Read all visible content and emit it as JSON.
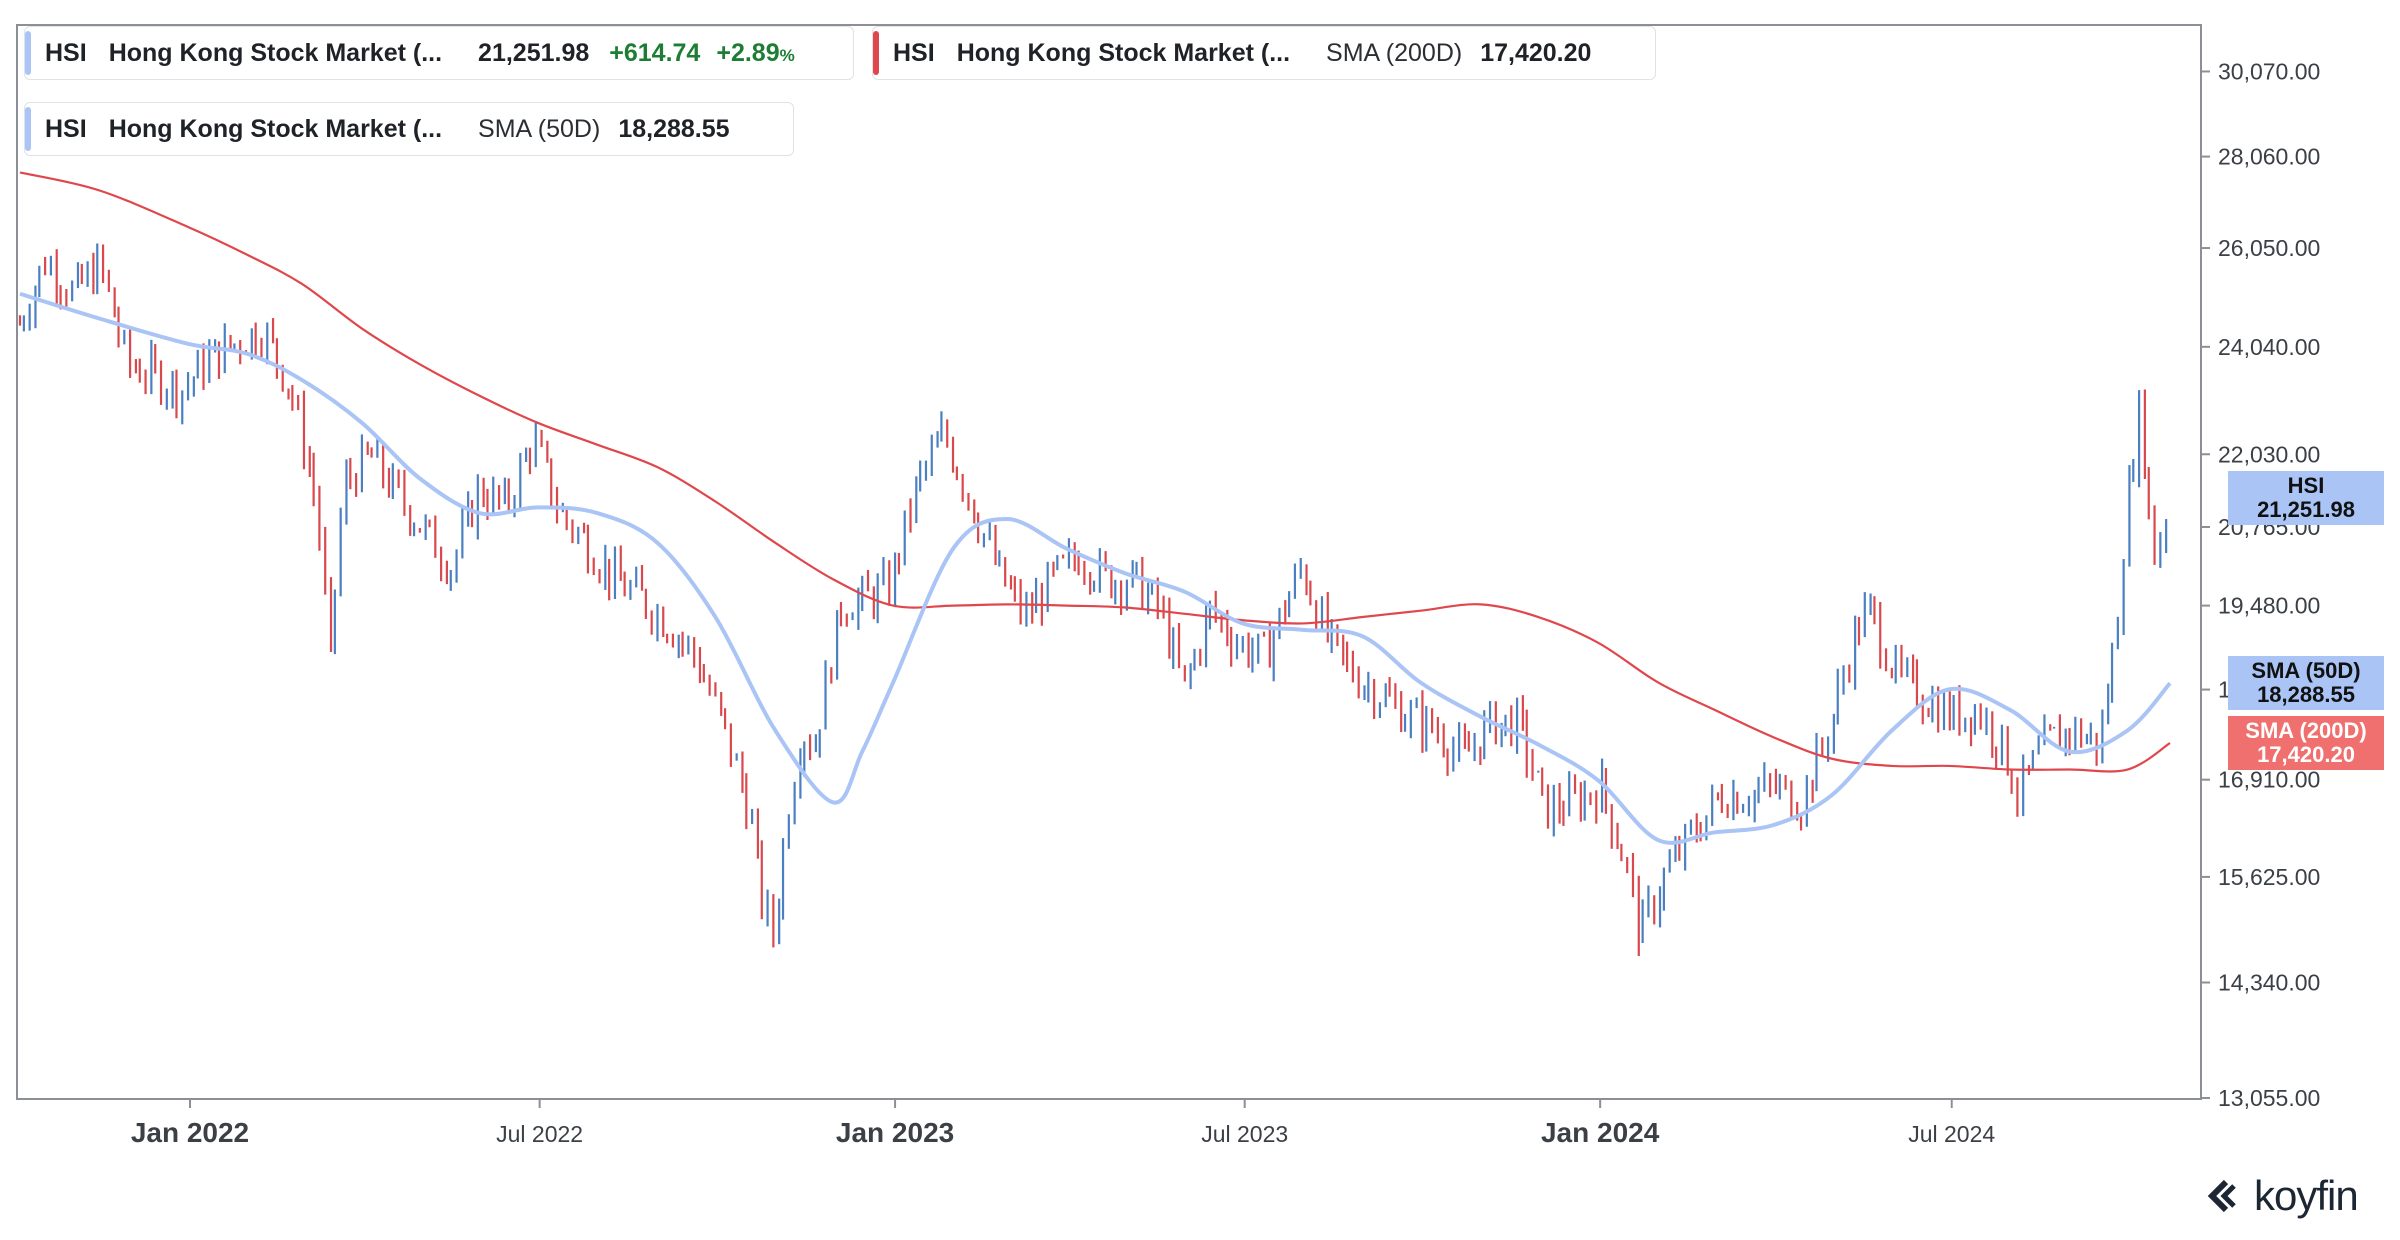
{
  "legend": [
    {
      "ticker": "HSI",
      "name": "Hong Kong Stock Market (...",
      "value": "21,251.98",
      "change": "+614.74",
      "change_pct": "+2.89",
      "pct_unit": "%",
      "color": "#a9c4f5"
    },
    {
      "ticker": "HSI",
      "name": "Hong Kong Stock Market (...",
      "indicator": "SMA (200D)",
      "value": "17,420.20",
      "color": "#e0474c"
    },
    {
      "ticker": "HSI",
      "name": "Hong Kong Stock Market (...",
      "indicator": "SMA (50D)",
      "value": "18,288.55",
      "color": "#a9c4f5"
    }
  ],
  "tags": {
    "price": {
      "line1": "HSI",
      "line2": "21,251.98",
      "color": "#a9c4f5"
    },
    "sma50": {
      "line1": "SMA (50D)",
      "line2": "18,288.55",
      "color": "#a9c4f5"
    },
    "sma200": {
      "line1": "SMA (200D)",
      "line2": "17,420.20",
      "color": "#f07070"
    }
  },
  "logo": {
    "text": "koyfin"
  },
  "chart_data": {
    "type": "candlestick",
    "title": "",
    "y_axis": {
      "ticks": [
        13055,
        14340,
        15625,
        16910,
        18195,
        19480,
        20765,
        22030,
        24040,
        26050,
        28060,
        30070
      ],
      "tick_labels": [
        "13,055.00",
        "14,340.00",
        "15,625.00",
        "16,910.00",
        "18,195.00",
        "19,480.00",
        "20,765.00",
        "22,030.00",
        "24,040.00",
        "26,050.00",
        "28,060.00",
        "30,070.00"
      ],
      "range": [
        13055,
        31000
      ],
      "scale": "log",
      "position": "right"
    },
    "x_axis": {
      "ticks": [
        {
          "date": "2022-01-01",
          "label": "Jan 2022",
          "major": true
        },
        {
          "date": "2022-07-01",
          "label": "Jul 2022",
          "major": false
        },
        {
          "date": "2023-01-01",
          "label": "Jan 2023",
          "major": true
        },
        {
          "date": "2023-07-01",
          "label": "Jul 2023",
          "major": false
        },
        {
          "date": "2024-01-01",
          "label": "Jan 2024",
          "major": true
        },
        {
          "date": "2024-07-01",
          "label": "Jul 2024",
          "major": false
        }
      ],
      "range": [
        "2021-10-05",
        "2024-10-22"
      ]
    },
    "grid": false,
    "series": [
      {
        "name": "HSI",
        "kind": "price",
        "up_color": "#4a7fc1",
        "down_color": "#d9484c",
        "points": [
          [
            "2021-10-05",
            24500
          ],
          [
            "2021-10-19",
            25800
          ],
          [
            "2021-11-02",
            25100
          ],
          [
            "2021-11-16",
            25700
          ],
          [
            "2021-11-30",
            23700
          ],
          [
            "2021-12-14",
            23500
          ],
          [
            "2021-12-28",
            23200
          ],
          [
            "2022-01-11",
            23800
          ],
          [
            "2022-01-25",
            24100
          ],
          [
            "2022-02-08",
            24400
          ],
          [
            "2022-02-22",
            23300
          ],
          [
            "2022-03-01",
            22300
          ],
          [
            "2022-03-08",
            21200
          ],
          [
            "2022-03-15",
            18600
          ],
          [
            "2022-03-22",
            21500
          ],
          [
            "2022-04-05",
            22000
          ],
          [
            "2022-04-19",
            21300
          ],
          [
            "2022-05-03",
            20700
          ],
          [
            "2022-05-17",
            20100
          ],
          [
            "2022-05-31",
            21400
          ],
          [
            "2022-06-14",
            21100
          ],
          [
            "2022-06-28",
            22300
          ],
          [
            "2022-07-12",
            21000
          ],
          [
            "2022-07-26",
            20500
          ],
          [
            "2022-08-09",
            19900
          ],
          [
            "2022-08-23",
            19600
          ],
          [
            "2022-09-06",
            19200
          ],
          [
            "2022-09-20",
            18700
          ],
          [
            "2022-10-04",
            17700
          ],
          [
            "2022-10-18",
            16500
          ],
          [
            "2022-10-25",
            15300
          ],
          [
            "2022-10-31",
            14900
          ],
          [
            "2022-11-07",
            16500
          ],
          [
            "2022-11-14",
            17600
          ],
          [
            "2022-11-21",
            17400
          ],
          [
            "2022-12-05",
            19500
          ],
          [
            "2022-12-19",
            19600
          ],
          [
            "2022-12-30",
            19780
          ],
          [
            "2023-01-13",
            21500
          ],
          [
            "2023-01-27",
            22400
          ],
          [
            "2023-02-10",
            21200
          ],
          [
            "2023-02-24",
            20000
          ],
          [
            "2023-03-10",
            19300
          ],
          [
            "2023-03-24",
            19900
          ],
          [
            "2023-04-07",
            20300
          ],
          [
            "2023-04-21",
            19900
          ],
          [
            "2023-05-05",
            19900
          ],
          [
            "2023-05-19",
            19400
          ],
          [
            "2023-05-31",
            18200
          ],
          [
            "2023-06-14",
            19400
          ],
          [
            "2023-06-28",
            18900
          ],
          [
            "2023-07-12",
            18700
          ],
          [
            "2023-07-31",
            20100
          ],
          [
            "2023-08-14",
            18900
          ],
          [
            "2023-08-28",
            18400
          ],
          [
            "2023-09-11",
            18100
          ],
          [
            "2023-09-25",
            17800
          ],
          [
            "2023-10-09",
            17600
          ],
          [
            "2023-10-23",
            17200
          ],
          [
            "2023-11-06",
            17700
          ],
          [
            "2023-11-20",
            17700
          ],
          [
            "2023-12-04",
            16500
          ],
          [
            "2023-12-18",
            16600
          ],
          [
            "2024-01-02",
            16800
          ],
          [
            "2024-01-16",
            15700
          ],
          [
            "2024-01-22",
            14900
          ],
          [
            "2024-02-05",
            15700
          ],
          [
            "2024-02-19",
            16200
          ],
          [
            "2024-03-04",
            16700
          ],
          [
            "2024-03-18",
            16700
          ],
          [
            "2024-04-01",
            16800
          ],
          [
            "2024-04-15",
            16600
          ],
          [
            "2024-04-29",
            17600
          ],
          [
            "2024-05-13",
            19100
          ],
          [
            "2024-05-20",
            19400
          ],
          [
            "2024-06-03",
            18400
          ],
          [
            "2024-06-17",
            18100
          ],
          [
            "2024-07-01",
            17800
          ],
          [
            "2024-07-15",
            17900
          ],
          [
            "2024-07-29",
            17300
          ],
          [
            "2024-08-05",
            16700
          ],
          [
            "2024-08-19",
            17400
          ],
          [
            "2024-09-02",
            17600
          ],
          [
            "2024-09-16",
            17400
          ],
          [
            "2024-09-24",
            18900
          ],
          [
            "2024-09-30",
            21100
          ],
          [
            "2024-10-07",
            22900
          ],
          [
            "2024-10-14",
            20200
          ],
          [
            "2024-10-22",
            21252
          ]
        ]
      },
      {
        "name": "SMA (50D)",
        "kind": "line",
        "color": "#a9c4f5",
        "points": [
          [
            "2021-10-05",
            25100
          ],
          [
            "2021-11-15",
            24600
          ],
          [
            "2021-12-31",
            24100
          ],
          [
            "2022-01-31",
            23900
          ],
          [
            "2022-02-28",
            23400
          ],
          [
            "2022-03-31",
            22600
          ],
          [
            "2022-04-30",
            21600
          ],
          [
            "2022-05-31",
            21000
          ],
          [
            "2022-06-30",
            21100
          ],
          [
            "2022-07-31",
            21000
          ],
          [
            "2022-08-31",
            20500
          ],
          [
            "2022-09-30",
            19300
          ],
          [
            "2022-10-31",
            17600
          ],
          [
            "2022-11-30",
            16600
          ],
          [
            "2022-12-15",
            17300
          ],
          [
            "2022-12-31",
            18300
          ],
          [
            "2023-01-31",
            20400
          ],
          [
            "2023-02-28",
            20900
          ],
          [
            "2023-03-31",
            20400
          ],
          [
            "2023-04-30",
            20000
          ],
          [
            "2023-05-31",
            19700
          ],
          [
            "2023-06-30",
            19200
          ],
          [
            "2023-07-31",
            19100
          ],
          [
            "2023-08-31",
            19000
          ],
          [
            "2023-09-30",
            18300
          ],
          [
            "2023-10-31",
            17800
          ],
          [
            "2023-11-30",
            17400
          ],
          [
            "2023-12-31",
            16900
          ],
          [
            "2024-01-31",
            16100
          ],
          [
            "2024-02-29",
            16200
          ],
          [
            "2024-03-31",
            16300
          ],
          [
            "2024-04-30",
            16700
          ],
          [
            "2024-05-31",
            17600
          ],
          [
            "2024-06-30",
            18200
          ],
          [
            "2024-07-31",
            17900
          ],
          [
            "2024-08-31",
            17300
          ],
          [
            "2024-09-30",
            17600
          ],
          [
            "2024-10-22",
            18289
          ]
        ]
      },
      {
        "name": "SMA (200D)",
        "kind": "line",
        "color": "#e0474c",
        "points": [
          [
            "2021-10-05",
            27700
          ],
          [
            "2021-11-15",
            27300
          ],
          [
            "2021-12-31",
            26500
          ],
          [
            "2022-01-31",
            25900
          ],
          [
            "2022-02-28",
            25300
          ],
          [
            "2022-03-31",
            24400
          ],
          [
            "2022-04-30",
            23700
          ],
          [
            "2022-05-31",
            23100
          ],
          [
            "2022-06-30",
            22600
          ],
          [
            "2022-07-31",
            22200
          ],
          [
            "2022-08-31",
            21800
          ],
          [
            "2022-09-30",
            21200
          ],
          [
            "2022-10-31",
            20500
          ],
          [
            "2022-11-30",
            19900
          ],
          [
            "2022-12-31",
            19480
          ],
          [
            "2023-01-31",
            19480
          ],
          [
            "2023-02-28",
            19500
          ],
          [
            "2023-03-31",
            19480
          ],
          [
            "2023-04-30",
            19450
          ],
          [
            "2023-05-31",
            19350
          ],
          [
            "2023-06-30",
            19250
          ],
          [
            "2023-07-31",
            19200
          ],
          [
            "2023-08-31",
            19300
          ],
          [
            "2023-09-30",
            19400
          ],
          [
            "2023-10-31",
            19500
          ],
          [
            "2023-11-30",
            19300
          ],
          [
            "2023-12-31",
            18900
          ],
          [
            "2024-01-31",
            18300
          ],
          [
            "2024-02-29",
            17900
          ],
          [
            "2024-03-31",
            17500
          ],
          [
            "2024-04-30",
            17200
          ],
          [
            "2024-05-31",
            17100
          ],
          [
            "2024-06-30",
            17100
          ],
          [
            "2024-07-31",
            17050
          ],
          [
            "2024-08-31",
            17050
          ],
          [
            "2024-09-30",
            17050
          ],
          [
            "2024-10-22",
            17420
          ]
        ]
      }
    ]
  }
}
